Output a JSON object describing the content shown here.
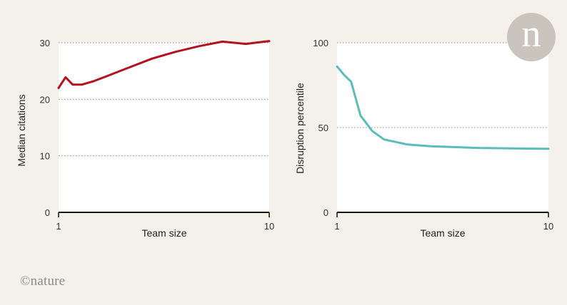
{
  "chart_data": [
    {
      "type": "line",
      "x": [
        1,
        1.3,
        1.6,
        2,
        2.5,
        3,
        4,
        5,
        6,
        7,
        8,
        9,
        10
      ],
      "values": [
        22.0,
        23.9,
        22.6,
        22.6,
        23.2,
        24.0,
        25.6,
        27.2,
        28.4,
        29.4,
        30.2,
        29.8,
        30.3
      ],
      "xlabel": "Team size",
      "ylabel": "Median citations",
      "xlim": [
        1,
        10
      ],
      "ylim": [
        0,
        30
      ],
      "xticks": [
        "1",
        "10"
      ],
      "yticks": [
        "0",
        "10",
        "20",
        "30"
      ],
      "color": "#b3121e",
      "grid": "dotted horizontal"
    },
    {
      "type": "line",
      "x": [
        1,
        1.3,
        1.6,
        2,
        2.5,
        3,
        4,
        5,
        6,
        7,
        8,
        9,
        10
      ],
      "values": [
        86,
        81,
        77,
        57,
        48,
        43,
        40,
        39,
        38.5,
        38,
        37.8,
        37.6,
        37.5
      ],
      "xlabel": "Team size",
      "ylabel": "Disruption percentile",
      "xlim": [
        1,
        10
      ],
      "ylim": [
        0,
        100
      ],
      "xticks": [
        "1",
        "10"
      ],
      "yticks": [
        "0",
        "50",
        "100"
      ],
      "color": "#5cbcbc",
      "grid": "dotted horizontal"
    }
  ],
  "credit": "©nature",
  "logo_letter": "n"
}
